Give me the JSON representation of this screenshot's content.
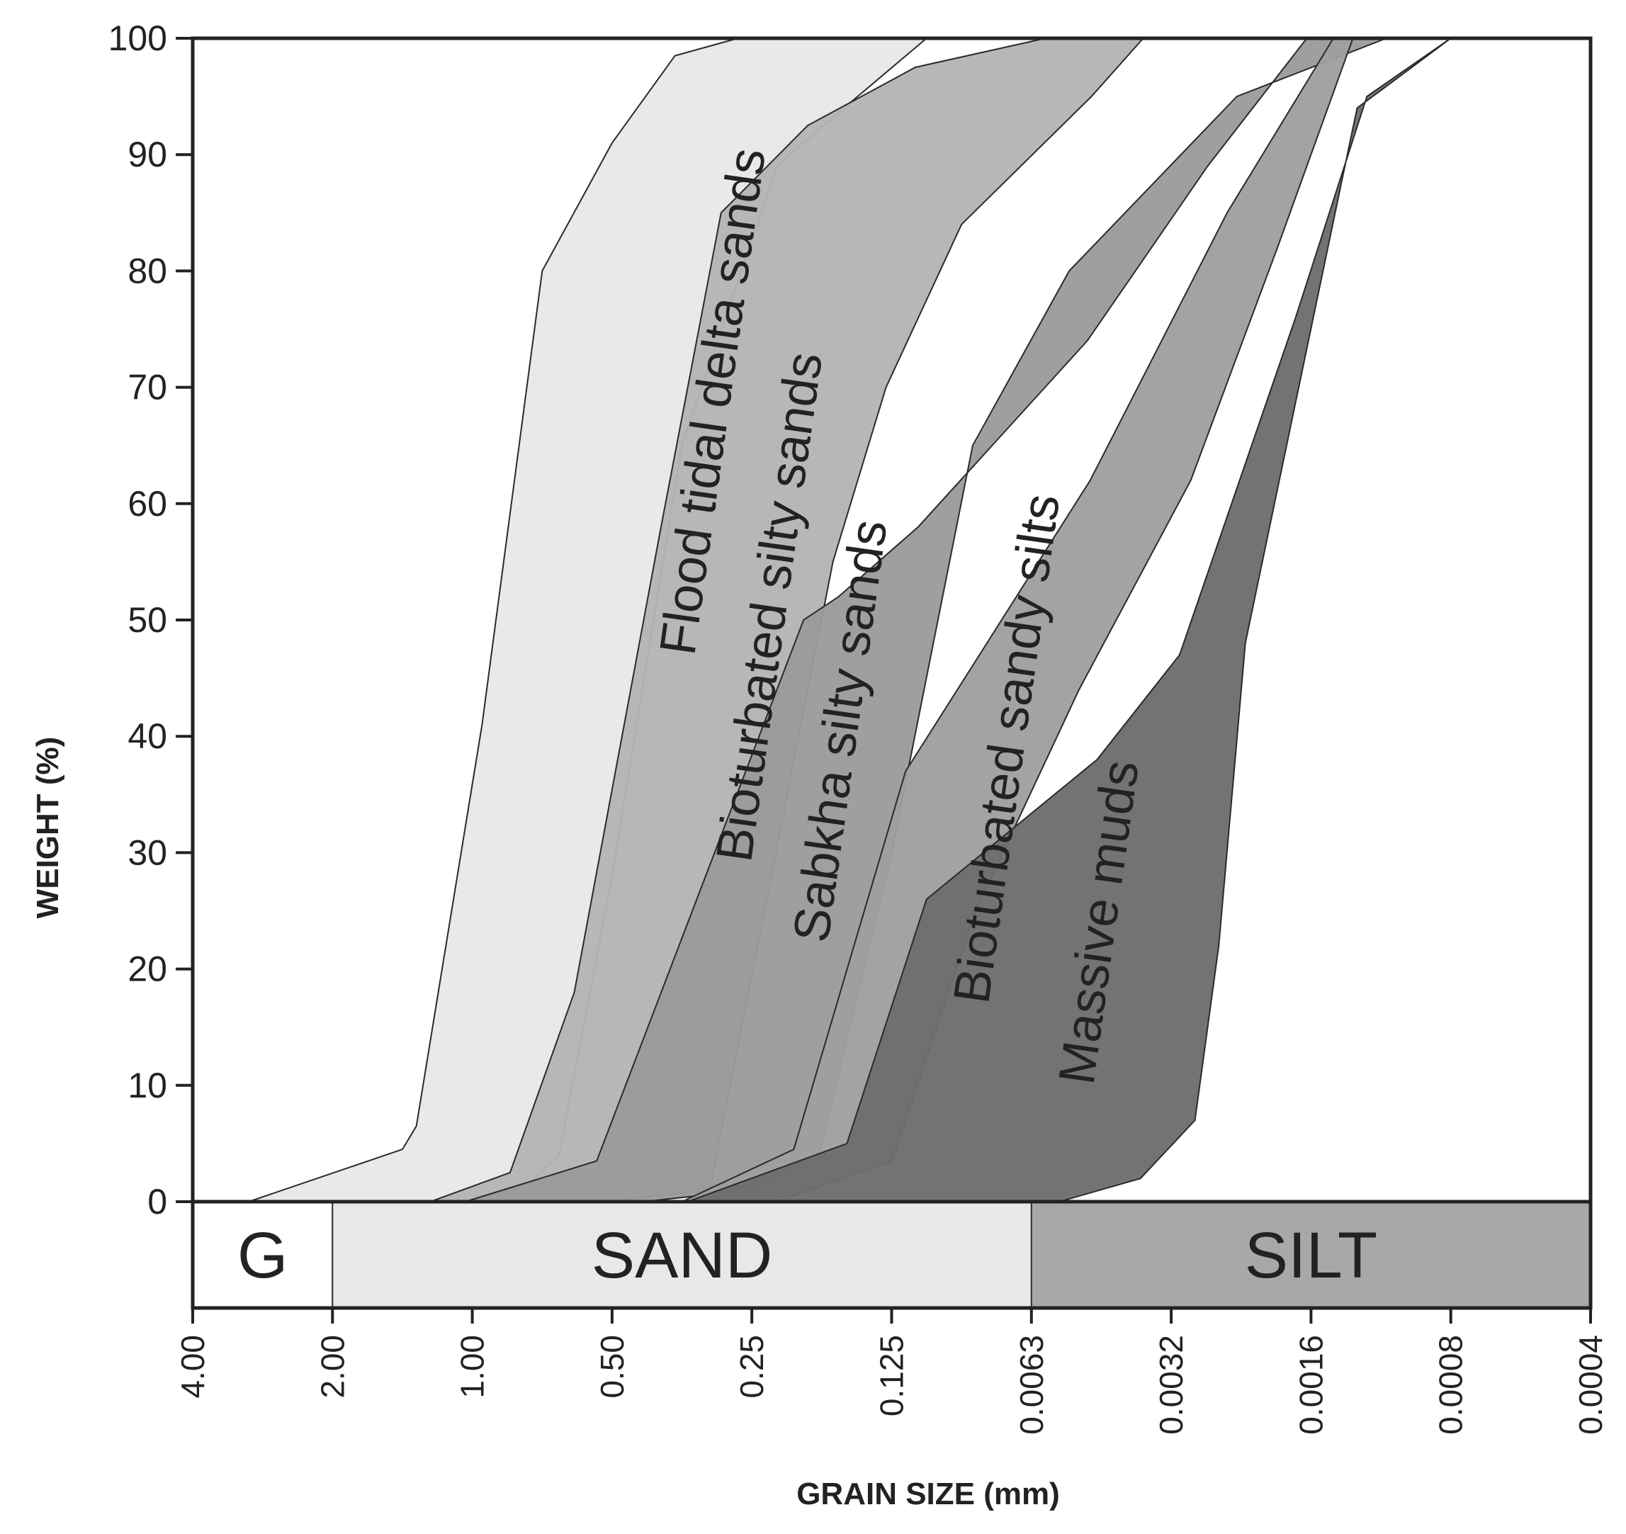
{
  "chart_data": {
    "type": "area",
    "title": "",
    "xlabel": "GRAIN SIZE (mm)",
    "ylabel": "WEIGHT (%)",
    "ylim": [
      0,
      100
    ],
    "y_ticks": [
      "0",
      "10",
      "20",
      "30",
      "40",
      "50",
      "60",
      "70",
      "80",
      "90",
      "100"
    ],
    "x_scale": "log2, decreasing grain size to the right",
    "xlim": [
      4.0,
      0.0004
    ],
    "x_ticks": [
      "4.00",
      "2.00",
      "1.00",
      "0.50",
      "0.25",
      "0.125",
      "0.0063",
      "0.0032",
      "0.0016",
      "0.0008",
      "0.0004"
    ],
    "x_tick_phi": [
      -2,
      -1,
      0,
      1,
      2,
      3,
      4,
      5,
      6,
      7,
      8
    ],
    "grid": false,
    "legend": "none",
    "size_classes": [
      {
        "label": "G",
        "from_phi": -2,
        "to_phi": -1,
        "color": "#ffffff"
      },
      {
        "label": "SAND",
        "from_phi": -1,
        "to_phi": 4,
        "color": "#e8e8e8"
      },
      {
        "label": "SILT",
        "from_phi": 4,
        "to_phi": 8,
        "color": "#a8a8a8"
      }
    ],
    "series": [
      {
        "name": "Flood tidal delta sands",
        "color": "#e8e8e8",
        "coarse_edge": [
          [
            -1.6,
            0
          ],
          [
            -0.5,
            4.5
          ],
          [
            -0.4,
            6.5
          ],
          [
            0.07,
            41
          ],
          [
            0.5,
            80
          ],
          [
            1.0,
            91
          ],
          [
            1.45,
            98.5
          ],
          [
            1.9,
            100
          ]
        ],
        "fine_edge": [
          [
            0.27,
            0
          ],
          [
            0.62,
            4
          ],
          [
            1.0,
            28
          ],
          [
            1.5,
            65
          ],
          [
            2.18,
            89
          ],
          [
            2.56,
            93
          ],
          [
            3.25,
            100
          ]
        ]
      },
      {
        "name": "Bioturbated silty sands",
        "color": "#b4b4b4",
        "coarse_edge": [
          [
            -0.3,
            0
          ],
          [
            0.27,
            2.5
          ],
          [
            0.73,
            18
          ],
          [
            1.35,
            58
          ],
          [
            1.78,
            85
          ],
          [
            2.4,
            92.5
          ],
          [
            3.17,
            97.5
          ],
          [
            4.1,
            100
          ]
        ],
        "fine_edge": [
          [
            0.95,
            0
          ],
          [
            1.7,
            1
          ],
          [
            2.58,
            55
          ],
          [
            2.96,
            70
          ],
          [
            3.5,
            84
          ],
          [
            4.43,
            95
          ],
          [
            4.8,
            100
          ]
        ]
      },
      {
        "name": "Sabkha silty sands",
        "color": "#9b9b9b",
        "coarse_edge": [
          [
            -0.05,
            0
          ],
          [
            0.89,
            3.5
          ],
          [
            2.37,
            50
          ],
          [
            2.62,
            52
          ],
          [
            3.19,
            58
          ],
          [
            4.4,
            74
          ],
          [
            5.26,
            89
          ],
          [
            5.97,
            100
          ]
        ],
        "fine_edge": [
          [
            1.22,
            0
          ],
          [
            2.0,
            1
          ],
          [
            2.48,
            4
          ],
          [
            3.0,
            30
          ],
          [
            3.58,
            65
          ],
          [
            4.27,
            80
          ],
          [
            5.47,
            95
          ],
          [
            6.54,
            100
          ]
        ]
      },
      {
        "name": "Bioturbated sandy silts",
        "color": "#9f9f9f",
        "coarse_edge": [
          [
            1.5,
            0
          ],
          [
            2.3,
            4.5
          ],
          [
            3.1,
            37
          ],
          [
            4.42,
            62
          ],
          [
            5.4,
            85
          ],
          [
            6.16,
            100
          ]
        ],
        "fine_edge": [
          [
            2.18,
            0
          ],
          [
            3.0,
            3.5
          ],
          [
            3.6,
            25
          ],
          [
            4.34,
            44
          ],
          [
            5.14,
            62
          ],
          [
            5.76,
            82
          ],
          [
            6.3,
            100
          ]
        ]
      },
      {
        "name": "Massive muds",
        "color": "#6d6d6d",
        "coarse_edge": [
          [
            1.54,
            0
          ],
          [
            2.68,
            5
          ],
          [
            3.25,
            26
          ],
          [
            4.47,
            38
          ],
          [
            5.06,
            47
          ],
          [
            5.89,
            76
          ],
          [
            6.4,
            95
          ],
          [
            7.0,
            100
          ]
        ],
        "fine_edge": [
          [
            4.2,
            0
          ],
          [
            4.78,
            2
          ],
          [
            5.17,
            7
          ],
          [
            5.34,
            22
          ],
          [
            5.53,
            48
          ],
          [
            6.19,
            86
          ],
          [
            6.33,
            94
          ],
          [
            7.0,
            100
          ]
        ]
      }
    ]
  }
}
